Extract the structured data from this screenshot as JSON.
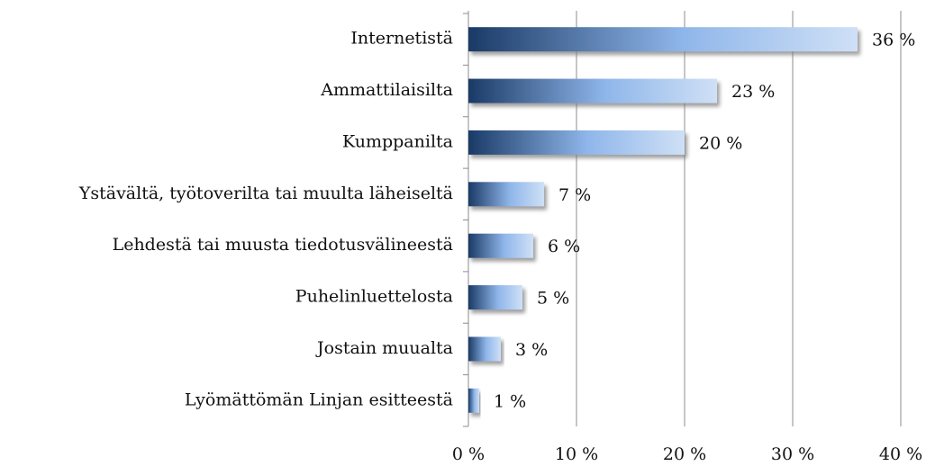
{
  "chart_data": {
    "type": "bar",
    "orientation": "horizontal",
    "categories": [
      "Internetistä",
      "Ammattilaisilta",
      "Kumppanilta",
      "Ystävältä, työtoverilta tai muulta läheiseltä",
      "Lehdestä tai muusta tiedotusvälineestä",
      "Puhelinluettelosta",
      "Jostain muualta",
      "Lyömättömän Linjan esitteestä"
    ],
    "values": [
      36,
      23,
      20,
      7,
      6,
      5,
      3,
      1
    ],
    "value_labels": [
      "36 %",
      "23 %",
      "20 %",
      "7 %",
      "6 %",
      "5 %",
      "3 %",
      "1 %"
    ],
    "color": [
      "#1a3a66",
      "#8fb6ea",
      "#cfe0f6"
    ],
    "xlim": [
      0,
      40
    ],
    "xticks": [
      {
        "value": 0,
        "label": "0 %"
      },
      {
        "value": 10,
        "label": "10 %"
      },
      {
        "value": 20,
        "label": "20 %"
      },
      {
        "value": 30,
        "label": "30 %"
      },
      {
        "value": 40,
        "label": "40 %"
      }
    ],
    "grid": true
  }
}
